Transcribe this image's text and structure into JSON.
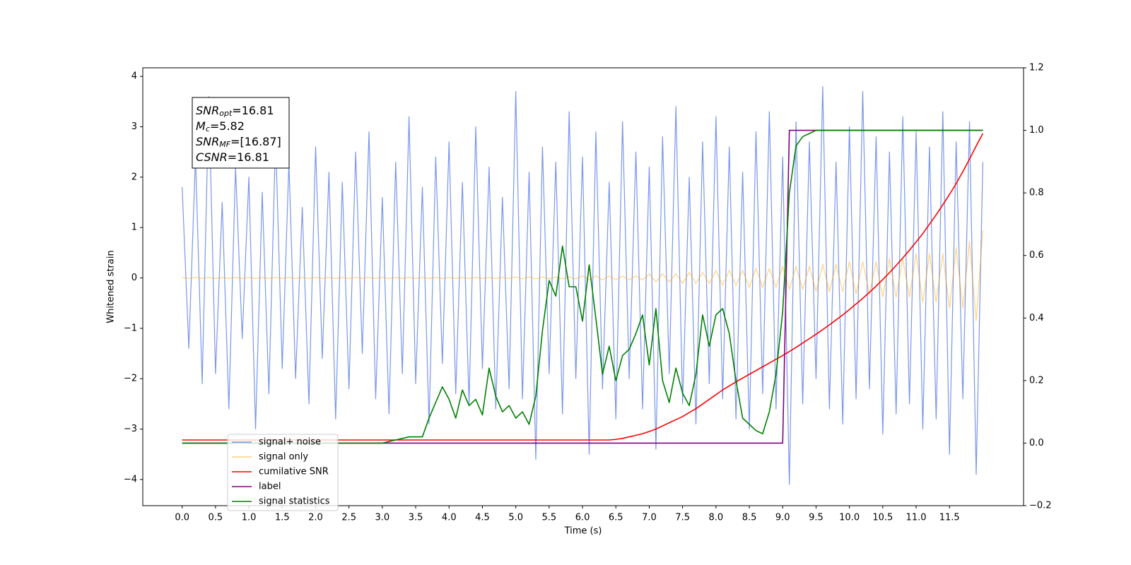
{
  "chart_data": {
    "type": "line",
    "xlabel": "Time (s)",
    "ylabel": "Whitened strain",
    "x": [
      0,
      0.1,
      0.2,
      0.3,
      0.4,
      0.5,
      0.6,
      0.7,
      0.8,
      0.9,
      1,
      1.1,
      1.2,
      1.3,
      1.4,
      1.5,
      1.6,
      1.7,
      1.8,
      1.9,
      2,
      2.1,
      2.2,
      2.3,
      2.4,
      2.5,
      2.6,
      2.7,
      2.8,
      2.9,
      3,
      3.1,
      3.2,
      3.3,
      3.4,
      3.5,
      3.6,
      3.7,
      3.8,
      3.9,
      4,
      4.1,
      4.2,
      4.3,
      4.4,
      4.5,
      4.6,
      4.7,
      4.8,
      4.9,
      5,
      5.1,
      5.2,
      5.3,
      5.4,
      5.5,
      5.6,
      5.7,
      5.8,
      5.9,
      6,
      6.1,
      6.2,
      6.3,
      6.4,
      6.5,
      6.6,
      6.7,
      6.8,
      6.9,
      7,
      7.1,
      7.2,
      7.3,
      7.4,
      7.5,
      7.6,
      7.7,
      7.8,
      7.9,
      8,
      8.1,
      8.2,
      8.3,
      8.4,
      8.5,
      8.6,
      8.7,
      8.8,
      8.9,
      9,
      9.1,
      9.2,
      9.3,
      9.4,
      9.5,
      9.6,
      9.7,
      9.8,
      9.9,
      10,
      10.1,
      10.2,
      10.3,
      10.4,
      10.5,
      10.6,
      10.7,
      10.8,
      10.9,
      11,
      11.1,
      11.2,
      11.3,
      11.4,
      11.5,
      11.6,
      11.7,
      11.8,
      11.9,
      12
    ],
    "series": [
      {
        "name": "signal+ noise",
        "color": "#4169e1",
        "values": [
          1.8,
          -1.4,
          2.4,
          -2.1,
          3.6,
          -1.9,
          1.5,
          -2.6,
          2.2,
          -1.2,
          2.0,
          -3.0,
          1.7,
          -2.3,
          2.8,
          -1.8,
          2.3,
          -2.0,
          1.4,
          -2.5,
          2.6,
          -1.6,
          2.1,
          -2.8,
          1.9,
          -2.2,
          2.5,
          -1.5,
          2.9,
          -2.4,
          1.6,
          -2.7,
          2.3,
          -1.9,
          3.2,
          -2.1,
          1.8,
          -2.9,
          2.4,
          -1.7,
          2.7,
          -2.3,
          1.9,
          -2.5,
          3.0,
          -1.8,
          2.2,
          -2.6,
          1.6,
          -2.2,
          3.7,
          -2.4,
          2.1,
          -3.6,
          2.6,
          -1.9,
          2.3,
          -2.7,
          3.3,
          -2.0,
          2.4,
          -3.5,
          2.9,
          -2.2,
          1.9,
          -2.8,
          3.1,
          -2.0,
          2.5,
          -2.6,
          2.2,
          -3.4,
          2.8,
          -1.9,
          3.4,
          -2.5,
          2.0,
          -2.9,
          2.7,
          -2.1,
          3.2,
          -2.4,
          2.6,
          -2.8,
          2.1,
          -3.0,
          2.9,
          -2.3,
          3.3,
          -2.6,
          2.4,
          -4.1,
          3.1,
          -2.5,
          2.7,
          -2.0,
          3.8,
          -2.6,
          2.3,
          -2.9,
          3.0,
          -2.4,
          3.7,
          -2.2,
          2.8,
          -3.1,
          2.5,
          -2.7,
          3.2,
          -2.5,
          2.9,
          -3.0,
          2.6,
          -2.8,
          3.3,
          -3.5,
          2.7,
          -2.4,
          3.1,
          -3.9,
          2.3
        ]
      },
      {
        "name": "signal only",
        "color": "#ffa500",
        "values": [
          0.01,
          -0.01,
          0.01,
          -0.01,
          0.01,
          -0.01,
          0.01,
          -0.01,
          0.01,
          -0.01,
          0.01,
          -0.01,
          0.01,
          -0.01,
          0.01,
          -0.01,
          0.01,
          -0.01,
          0.01,
          -0.01,
          0.01,
          -0.01,
          0.01,
          -0.01,
          0.01,
          -0.01,
          0.01,
          -0.01,
          0.01,
          -0.01,
          0.01,
          -0.01,
          0.01,
          -0.01,
          0.01,
          -0.01,
          0.01,
          -0.01,
          0.01,
          -0.01,
          0.01,
          -0.01,
          0.01,
          -0.01,
          0.01,
          -0.01,
          0.01,
          -0.01,
          0.01,
          -0.01,
          0.02,
          -0.02,
          0.02,
          -0.02,
          0.02,
          -0.02,
          0.02,
          -0.02,
          0.02,
          -0.02,
          0.04,
          -0.04,
          0.04,
          -0.04,
          0.04,
          -0.04,
          0.04,
          -0.04,
          0.04,
          -0.04,
          0.08,
          -0.08,
          0.08,
          -0.08,
          0.08,
          -0.11,
          0.11,
          -0.11,
          0.11,
          -0.11,
          0.15,
          -0.15,
          0.15,
          -0.15,
          0.15,
          -0.19,
          0.19,
          -0.19,
          0.19,
          -0.19,
          0.23,
          -0.23,
          0.23,
          -0.23,
          0.23,
          -0.27,
          0.27,
          -0.27,
          0.27,
          -0.27,
          0.32,
          -0.32,
          0.32,
          -0.32,
          0.32,
          -0.38,
          0.38,
          -0.38,
          0.38,
          -0.38,
          0.48,
          -0.48,
          0.48,
          -0.48,
          0.48,
          -0.6,
          0.6,
          -0.6,
          0.72,
          -0.85,
          0.95
        ]
      },
      {
        "name": "cumilative SNR",
        "color": "#ff0000",
        "axis": "y2",
        "values": [
          0.01,
          0.01,
          0.01,
          0.01,
          0.01,
          0.01,
          0.01,
          0.01,
          0.01,
          0.01,
          0.01,
          0.01,
          0.01,
          0.01,
          0.01,
          0.01,
          0.01,
          0.01,
          0.01,
          0.01,
          0.01,
          0.01,
          0.01,
          0.01,
          0.01,
          0.01,
          0.01,
          0.01,
          0.01,
          0.01,
          0.01,
          0.01,
          0.01,
          0.01,
          0.01,
          0.01,
          0.01,
          0.01,
          0.01,
          0.01,
          0.01,
          0.01,
          0.01,
          0.01,
          0.01,
          0.01,
          0.01,
          0.01,
          0.01,
          0.01,
          0.01,
          0.01,
          0.01,
          0.01,
          0.01,
          0.01,
          0.01,
          0.01,
          0.01,
          0.01,
          0.01,
          0.01,
          0.01,
          0.01,
          0.01,
          0.012,
          0.015,
          0.02,
          0.025,
          0.03,
          0.037,
          0.045,
          0.055,
          0.065,
          0.075,
          0.085,
          0.098,
          0.11,
          0.125,
          0.14,
          0.155,
          0.17,
          0.183,
          0.196,
          0.208,
          0.22,
          0.232,
          0.244,
          0.256,
          0.268,
          0.28,
          0.293,
          0.306,
          0.32,
          0.334,
          0.348,
          0.363,
          0.378,
          0.394,
          0.41,
          0.427,
          0.445,
          0.463,
          0.482,
          0.502,
          0.523,
          0.545,
          0.568,
          0.592,
          0.617,
          0.643,
          0.67,
          0.7,
          0.73,
          0.762,
          0.795,
          0.83,
          0.868,
          0.908,
          0.95,
          0.99
        ]
      },
      {
        "name": "label",
        "color": "#800080",
        "axis": "y2",
        "values": [
          0,
          0,
          0,
          0,
          0,
          0,
          0,
          0,
          0,
          0,
          0,
          0,
          0,
          0,
          0,
          0,
          0,
          0,
          0,
          0,
          0,
          0,
          0,
          0,
          0,
          0,
          0,
          0,
          0,
          0,
          0,
          0,
          0,
          0,
          0,
          0,
          0,
          0,
          0,
          0,
          0,
          0,
          0,
          0,
          0,
          0,
          0,
          0,
          0,
          0,
          0,
          0,
          0,
          0,
          0,
          0,
          0,
          0,
          0,
          0,
          0,
          0,
          0,
          0,
          0,
          0,
          0,
          0,
          0,
          0,
          0,
          0,
          0,
          0,
          0,
          0,
          0,
          0,
          0,
          0,
          0,
          0,
          0,
          0,
          0,
          0,
          0,
          0,
          0,
          0,
          0,
          1,
          1,
          1,
          1,
          1,
          1,
          1,
          1,
          1,
          1,
          1,
          1,
          1,
          1,
          1,
          1,
          1,
          1,
          1,
          1,
          1,
          1,
          1,
          1,
          1,
          1,
          1,
          1,
          1,
          1
        ]
      },
      {
        "name": "signal statistics",
        "color": "#008000",
        "axis": "y2",
        "values": [
          0,
          0,
          0,
          0,
          0,
          0,
          0,
          0,
          0,
          0,
          0,
          0,
          0,
          0,
          0,
          0,
          0,
          0,
          0,
          0,
          0,
          0,
          0,
          0,
          0,
          0,
          0,
          0,
          0,
          0,
          0,
          0.005,
          0.01,
          0.015,
          0.02,
          0.02,
          0.02,
          0.08,
          0.13,
          0.18,
          0.14,
          0.08,
          0.17,
          0.12,
          0.14,
          0.09,
          0.24,
          0.15,
          0.1,
          0.12,
          0.08,
          0.1,
          0.06,
          0.15,
          0.36,
          0.52,
          0.47,
          0.63,
          0.5,
          0.5,
          0.39,
          0.57,
          0.4,
          0.22,
          0.31,
          0.2,
          0.28,
          0.3,
          0.35,
          0.41,
          0.25,
          0.43,
          0.2,
          0.13,
          0.24,
          0.16,
          0.12,
          0.22,
          0.41,
          0.31,
          0.41,
          0.43,
          0.35,
          0.2,
          0.08,
          0.06,
          0.04,
          0.03,
          0.1,
          0.22,
          0.42,
          0.8,
          0.95,
          0.98,
          0.99,
          1,
          1,
          1,
          1,
          1,
          1,
          1,
          1,
          1,
          1,
          1,
          1,
          1,
          1,
          1,
          1,
          1,
          1,
          1,
          1,
          1,
          1,
          1,
          1,
          1,
          1
        ]
      }
    ],
    "xlim": [
      -0.59,
      12.61
    ],
    "xticks": [
      {
        "value": 0,
        "label": "0.0"
      },
      0.5,
      {
        "value": 1,
        "label": "1.0"
      },
      1.5,
      {
        "value": 2,
        "label": "2.0"
      },
      2.5,
      {
        "value": 3,
        "label": "3.0"
      },
      3.5,
      {
        "value": 4,
        "label": "4.0"
      },
      4.5,
      {
        "value": 5,
        "label": "5.0"
      },
      5.5,
      {
        "value": 6,
        "label": "6.0"
      },
      6.5,
      {
        "value": 7,
        "label": "7.0"
      },
      7.5,
      {
        "value": 8,
        "label": "8.0"
      },
      8.5,
      {
        "value": 9,
        "label": "9.0"
      },
      9.5,
      {
        "value": 10,
        "label": "10.0"
      },
      10.5,
      {
        "value": 11,
        "label": "11.0"
      },
      11.5
    ],
    "ylim": [
      -4.52,
      4.17
    ],
    "yticks": [
      {
        "value": -4,
        "label": "−4"
      },
      {
        "value": -3,
        "label": "−3"
      },
      {
        "value": -2,
        "label": "−2"
      },
      {
        "value": -1,
        "label": "−1"
      },
      0,
      1,
      2,
      3,
      4
    ],
    "y2lim": [
      -0.2,
      1.2
    ],
    "y2ticks": [
      {
        "value": -0.2,
        "label": "−0.2"
      },
      {
        "value": 0,
        "label": "0.0"
      },
      0.2,
      0.4,
      0.6,
      0.8,
      {
        "value": 1,
        "label": "1.0"
      },
      1.2
    ],
    "annotations": [
      {
        "symbol": "SNR",
        "subscript": "opt",
        "text": "=16.81"
      },
      {
        "symbol": "M",
        "subscript": "c",
        "text": "=5.82"
      },
      {
        "symbol": "SNR",
        "subscript": "MF",
        "text": "=[16.87]"
      },
      {
        "symbol": "CSNR",
        "text": "=16.81"
      }
    ],
    "legend": "lower left"
  }
}
